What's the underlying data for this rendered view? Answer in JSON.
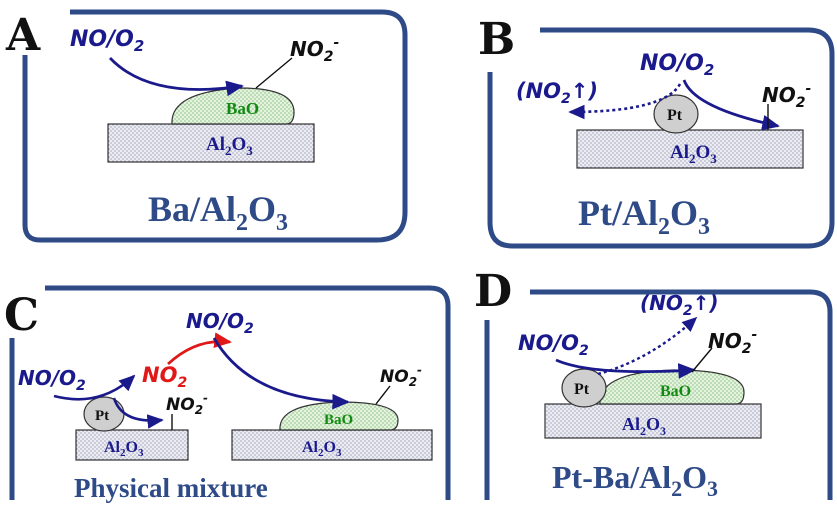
{
  "panels": {
    "A": {
      "letter": "A",
      "caption": {
        "base": "Ba/Al",
        "sub1": "2",
        "mid": "O",
        "sub2": "3"
      },
      "reactant": "NO/O",
      "reactant_sub": "2",
      "product": "NO",
      "product_sub": "2",
      "product_sup": "-",
      "storage": "BaO",
      "support": {
        "base": "Al",
        "sub1": "2",
        "mid": "O",
        "sub2": "3"
      }
    },
    "B": {
      "letter": "B",
      "caption": {
        "base": "Pt/Al",
        "sub1": "2",
        "mid": "O",
        "sub2": "3"
      },
      "reactant": "NO/O",
      "reactant_sub": "2",
      "gas_out": "(NO",
      "gas_out_sub": "2",
      "gas_out_end": "↑)",
      "product": "NO",
      "product_sub": "2",
      "product_sup": "-",
      "metal": "Pt",
      "support": {
        "base": "Al",
        "sub1": "2",
        "mid": "O",
        "sub2": "3"
      }
    },
    "C": {
      "letter": "C",
      "caption": "Physical mixture",
      "reactant_left": "NO/O",
      "reactant_left_sub": "2",
      "intermediate": "NO",
      "intermediate_sub": "2",
      "reactant_top": "NO/O",
      "reactant_top_sub": "2",
      "product_left": "NO",
      "product_left_sub": "2",
      "product_left_sup": "-",
      "product_right": "NO",
      "product_right_sub": "2",
      "product_right_sup": "-",
      "metal": "Pt",
      "storage": "BaO",
      "support": {
        "base": "Al",
        "sub1": "2",
        "mid": "O",
        "sub2": "3"
      }
    },
    "D": {
      "letter": "D",
      "caption": {
        "base": "Pt-Ba/Al",
        "sub1": "2",
        "mid": "O",
        "sub2": "3"
      },
      "reactant": "NO/O",
      "reactant_sub": "2",
      "gas_out": "(NO",
      "gas_out_sub": "2",
      "gas_out_end": "↑)",
      "product": "NO",
      "product_sub": "2",
      "product_sup": "-",
      "metal": "Pt",
      "storage": "BaO",
      "support": {
        "base": "Al",
        "sub1": "2",
        "mid": "O",
        "sub2": "3"
      }
    }
  },
  "colors": {
    "frame": "#2e4a87",
    "arrow": "#1a1a8c",
    "arrow_red": "#e01818",
    "bao_fill": "#dff0d8",
    "support_fill": "#e6e6ee",
    "pt_fill": "#cfcfcf"
  }
}
